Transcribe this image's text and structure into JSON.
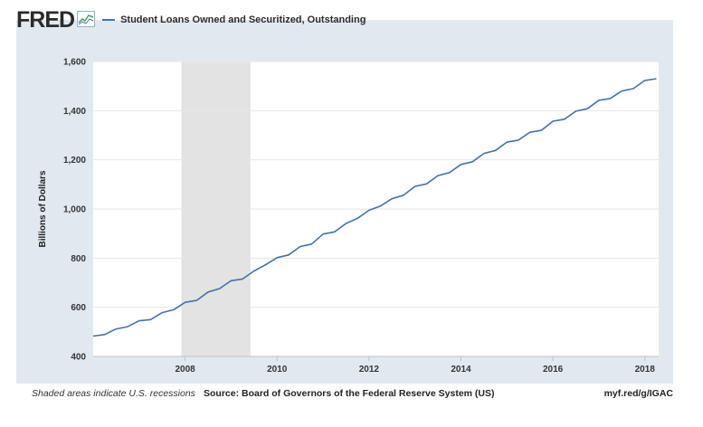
{
  "brand": {
    "logo_text": "FRED",
    "logo_icon": "line-chart-icon"
  },
  "footer": {
    "note": "Shaded areas indicate U.S. recessions",
    "source": "Source: Board of Governors of the Federal Reserve System (US)",
    "link": "myf.red/g/IGAC"
  },
  "colors": {
    "frame": "#e1e9f0",
    "line": "#4572a7",
    "recession": "#e3e3e3",
    "plot_bg": "#ffffff",
    "grid": "#e6e6e6"
  },
  "chart_data": {
    "type": "line",
    "title": "Student Loans Owned and Securitized, Outstanding",
    "ylabel": "Billions of Dollars",
    "xlabel": "",
    "xlim": [
      2006.0,
      2018.3
    ],
    "ylim": [
      400,
      1600
    ],
    "yticks": [
      400,
      600,
      800,
      1000,
      1200,
      1400,
      1600
    ],
    "ytick_labels": [
      "400",
      "600",
      "800",
      "1,000",
      "1,200",
      "1,400",
      "1,600"
    ],
    "xticks": [
      2008,
      2010,
      2012,
      2014,
      2016,
      2018
    ],
    "xtick_labels": [
      "2008",
      "2010",
      "2012",
      "2014",
      "2016",
      "2018"
    ],
    "grid": true,
    "recessions": [
      {
        "start": 2007.92,
        "end": 2009.42
      }
    ],
    "series": [
      {
        "name": "Student Loans Owned and Securitized, Outstanding",
        "x": [
          2006.0,
          2006.25,
          2006.5,
          2006.75,
          2007.0,
          2007.25,
          2007.5,
          2007.75,
          2008.0,
          2008.25,
          2008.5,
          2008.75,
          2009.0,
          2009.25,
          2009.5,
          2009.75,
          2010.0,
          2010.25,
          2010.5,
          2010.75,
          2011.0,
          2011.25,
          2011.5,
          2011.75,
          2012.0,
          2012.25,
          2012.5,
          2012.75,
          2013.0,
          2013.25,
          2013.5,
          2013.75,
          2014.0,
          2014.25,
          2014.5,
          2014.75,
          2015.0,
          2015.25,
          2015.5,
          2015.75,
          2016.0,
          2016.25,
          2016.5,
          2016.75,
          2017.0,
          2017.25,
          2017.5,
          2017.75,
          2018.0,
          2018.25
        ],
        "values": [
          483,
          489,
          512,
          521,
          545,
          550,
          578,
          590,
          620,
          628,
          662,
          676,
          708,
          715,
          748,
          773,
          802,
          813,
          847,
          857,
          898,
          907,
          941,
          962,
          995,
          1012,
          1042,
          1056,
          1092,
          1102,
          1136,
          1148,
          1181,
          1192,
          1226,
          1238,
          1272,
          1280,
          1312,
          1320,
          1357,
          1365,
          1398,
          1408,
          1442,
          1450,
          1480,
          1490,
          1523,
          1530
        ]
      }
    ]
  }
}
